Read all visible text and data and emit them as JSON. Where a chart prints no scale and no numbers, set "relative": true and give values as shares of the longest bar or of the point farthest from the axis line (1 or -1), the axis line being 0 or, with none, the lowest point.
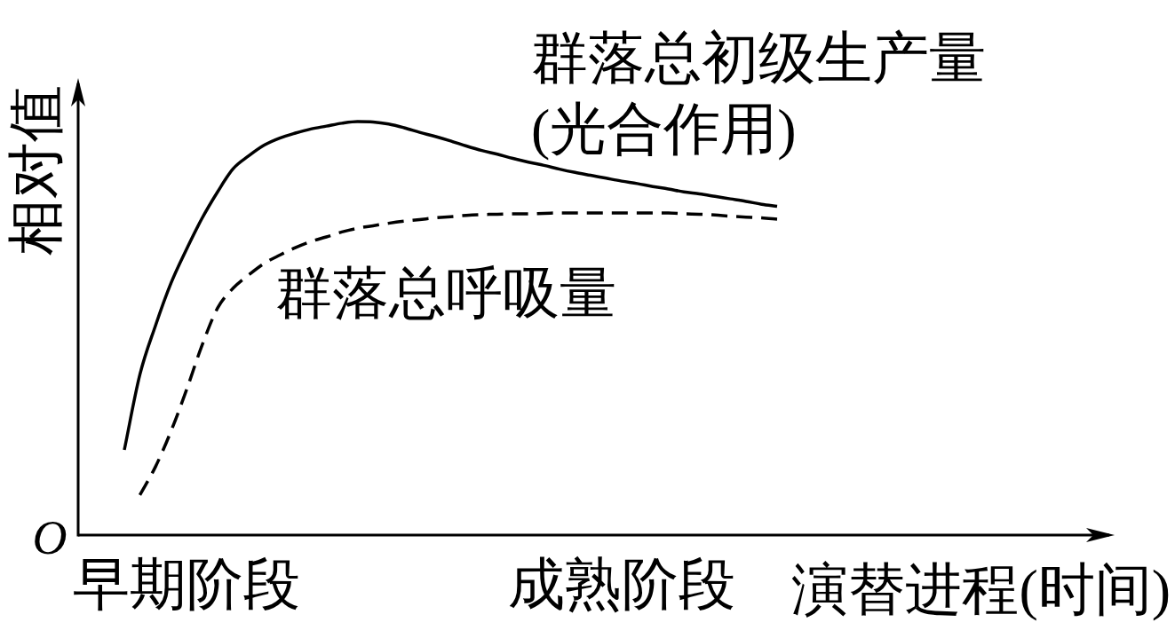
{
  "chart_data": {
    "type": "line",
    "relative": true,
    "ylabel": "相对值",
    "xlabel": "演替进程(时间)",
    "annotations": [
      "O"
    ],
    "categories": [
      null,
      null,
      null,
      null,
      "早期阶段",
      null,
      null,
      null,
      null,
      null,
      null,
      null,
      null,
      null,
      null,
      null,
      null,
      null,
      null,
      null,
      null,
      null,
      null,
      null,
      null,
      null,
      null,
      null,
      null,
      null,
      null,
      null,
      "成熟阶段",
      null,
      null,
      null,
      null,
      null,
      null,
      null,
      null,
      null,
      null
    ],
    "series": [
      {
        "name": "群落总初级生产量\n(光合作用)",
        "color": "#000000",
        "line_style": "solid",
        "values": [
          0.206,
          0.388,
          0.506,
          0.609,
          0.691,
          0.766,
          0.83,
          0.886,
          0.917,
          0.943,
          0.96,
          0.972,
          0.982,
          0.989,
          0.996,
          1.0,
          0.999,
          0.994,
          0.985,
          0.974,
          0.964,
          0.953,
          0.941,
          0.93,
          0.921,
          0.911,
          0.902,
          0.894,
          0.885,
          0.877,
          0.87,
          0.863,
          0.856,
          0.85,
          0.843,
          0.837,
          0.83,
          0.825,
          0.819,
          0.813,
          0.807,
          0.8,
          0.795
        ]
      },
      {
        "name": "群落总呼吸量",
        "color": "#000000",
        "line_style": "dashed",
        "values": [
          null,
          0.097,
          0.165,
          0.251,
          0.351,
          0.459,
          0.549,
          0.597,
          0.629,
          0.657,
          0.677,
          0.695,
          0.71,
          0.721,
          0.733,
          0.742,
          0.748,
          0.754,
          0.759,
          0.763,
          0.767,
          0.77,
          0.773,
          0.775,
          0.776,
          0.777,
          0.777,
          0.778,
          0.779,
          0.779,
          0.779,
          0.779,
          0.779,
          0.779,
          0.779,
          0.779,
          0.777,
          0.776,
          0.774,
          0.771,
          0.769,
          0.767,
          0.764
        ]
      }
    ]
  }
}
